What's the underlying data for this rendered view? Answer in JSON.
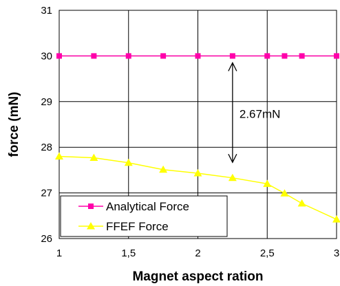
{
  "chart_data": {
    "type": "line",
    "xlabel": "Magnet aspect ration",
    "ylabel": "force (mN)",
    "xlim": [
      1,
      3
    ],
    "ylim": [
      26,
      31
    ],
    "xticks": [
      1,
      1.5,
      2,
      2.5,
      3
    ],
    "xtick_labels": [
      "1",
      "1,5",
      "2",
      "2,5",
      "3"
    ],
    "yticks": [
      26,
      27,
      28,
      29,
      30,
      31
    ],
    "ytick_labels": [
      "26",
      "27",
      "28",
      "29",
      "30",
      "31"
    ],
    "grid": true,
    "legend_position": "bottom-left",
    "series": [
      {
        "name": "Analytical Force",
        "color": "#ff00aa",
        "marker": "square",
        "x": [
          1,
          1.25,
          1.5,
          1.75,
          2,
          2.25,
          2.5,
          2.625,
          2.75,
          3
        ],
        "y": [
          30,
          30,
          30,
          30,
          30,
          30,
          30,
          30,
          30,
          30
        ]
      },
      {
        "name": "FFEF Force",
        "color": "#ffff00",
        "marker": "triangle",
        "x": [
          1,
          1.25,
          1.5,
          1.75,
          2,
          2.25,
          2.5,
          2.625,
          2.75,
          3
        ],
        "y": [
          27.8,
          27.77,
          27.66,
          27.51,
          27.43,
          27.33,
          27.2,
          26.99,
          26.77,
          26.42
        ]
      }
    ],
    "annotations": [
      {
        "text": "2.67mN",
        "arrow_x": 2.25,
        "arrow_y_from": 27.67,
        "arrow_y_to": 29.85
      }
    ]
  }
}
